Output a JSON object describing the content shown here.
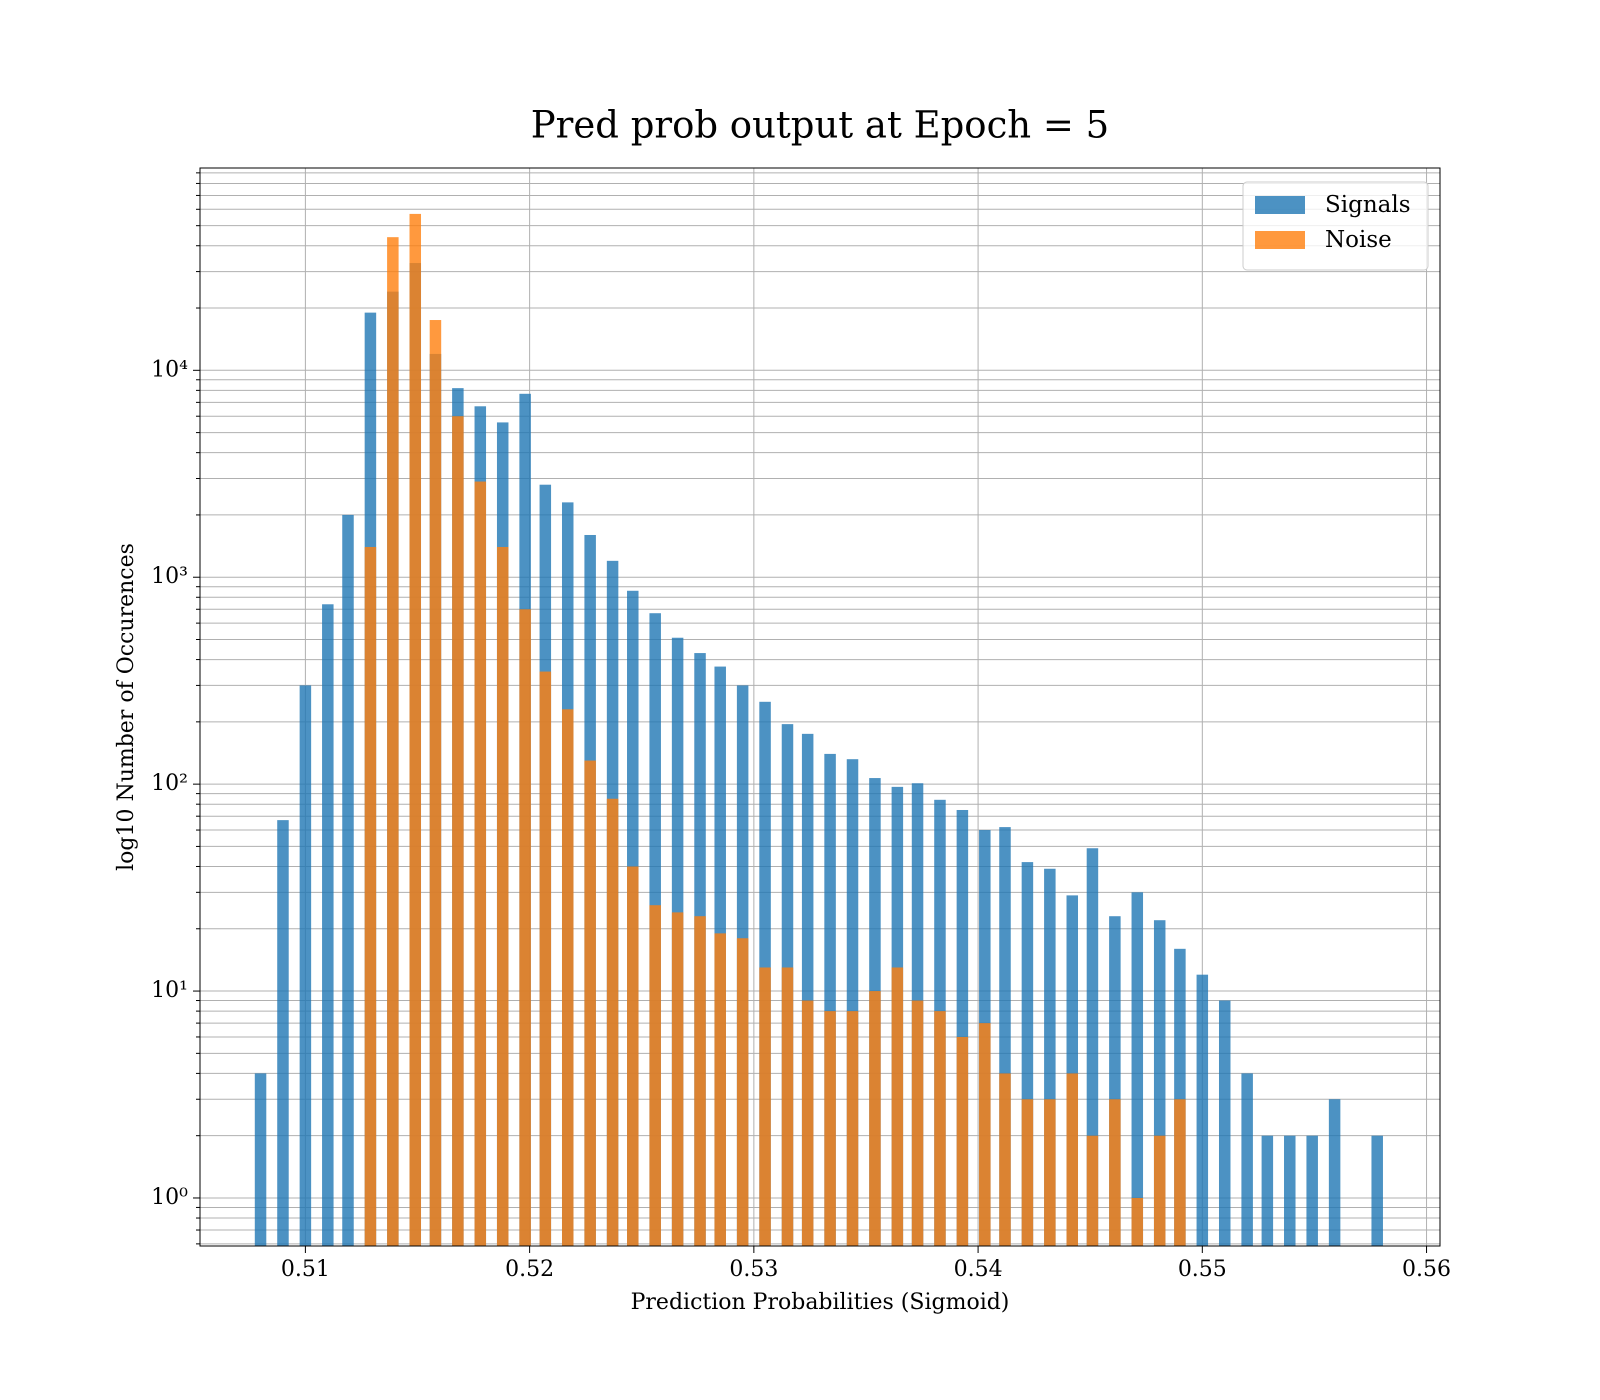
{
  "chart_data": {
    "type": "bar",
    "title": "Pred prob output at Epoch = 5",
    "x_label": "Prediction Probabilities (Sigmoid)",
    "y_label": "log10 Number of Occurences",
    "x": [
      0.508,
      0.509,
      0.51,
      0.511,
      0.5119,
      0.5129,
      0.5139,
      0.5149,
      0.5158,
      0.5168,
      0.5178,
      0.5188,
      0.5198,
      0.5207,
      0.5217,
      0.5227,
      0.5237,
      0.5246,
      0.5256,
      0.5266,
      0.5276,
      0.5285,
      0.5295,
      0.5305,
      0.5315,
      0.5324,
      0.5334,
      0.5344,
      0.5354,
      0.5364,
      0.5373,
      0.5383,
      0.5393,
      0.5403,
      0.5412,
      0.5422,
      0.5432,
      0.5442,
      0.5451,
      0.5461,
      0.5471,
      0.5481,
      0.549,
      0.55,
      0.551,
      0.552,
      0.5529,
      0.5539,
      0.5549,
      0.5559,
      0.5569,
      0.5578
    ],
    "series": [
      {
        "name": "Signals",
        "color": "#1f77b4",
        "values": [
          4,
          67,
          300,
          740,
          2000,
          19000,
          24000,
          33000,
          12000,
          8200,
          6700,
          5600,
          7700,
          2800,
          2300,
          1600,
          1200,
          860,
          670,
          510,
          430,
          370,
          300,
          250,
          195,
          175,
          140,
          132,
          107,
          97,
          101,
          84,
          75,
          60,
          62,
          42,
          39,
          29,
          49,
          23,
          30,
          22,
          16,
          12,
          9,
          4,
          2,
          2,
          2,
          3,
          null,
          2
        ]
      },
      {
        "name": "Noise",
        "color": "#ff7f0e",
        "values": [
          null,
          null,
          null,
          null,
          null,
          1400,
          44000,
          57000,
          17500,
          6000,
          2900,
          1400,
          700,
          350,
          230,
          130,
          85,
          40,
          26,
          24,
          23,
          19,
          18,
          13,
          13,
          9,
          8,
          8,
          10,
          13,
          9,
          8,
          6,
          7,
          4,
          3,
          3,
          4,
          2,
          3,
          1,
          2,
          3,
          null,
          null,
          null,
          null,
          null,
          null,
          null,
          null,
          null
        ]
      }
    ],
    "opacity": 0.8,
    "xlim": [
      0.5053,
      0.5606
    ],
    "xticks": [
      0.51,
      0.52,
      0.53,
      0.54,
      0.55,
      0.56
    ],
    "ylim": [
      0.586,
      95000
    ],
    "log_y": true,
    "yticks": [
      {
        "value": 1,
        "label": "10⁰"
      },
      {
        "value": 10,
        "label": "10¹"
      },
      {
        "value": 100,
        "label": "10²"
      },
      {
        "value": 1000,
        "label": "10³"
      },
      {
        "value": 10000,
        "label": "10⁴"
      }
    ],
    "yminorticks": [
      0.6,
      0.7,
      0.8,
      0.9,
      2,
      3,
      4,
      5,
      6,
      7,
      8,
      9,
      20,
      30,
      40,
      50,
      60,
      70,
      80,
      90,
      200,
      300,
      400,
      500,
      600,
      700,
      800,
      900,
      2000,
      3000,
      4000,
      5000,
      6000,
      7000,
      8000,
      9000,
      20000,
      30000,
      40000,
      50000,
      60000,
      70000,
      80000,
      90000
    ],
    "grid": true,
    "legend": "upper right"
  }
}
